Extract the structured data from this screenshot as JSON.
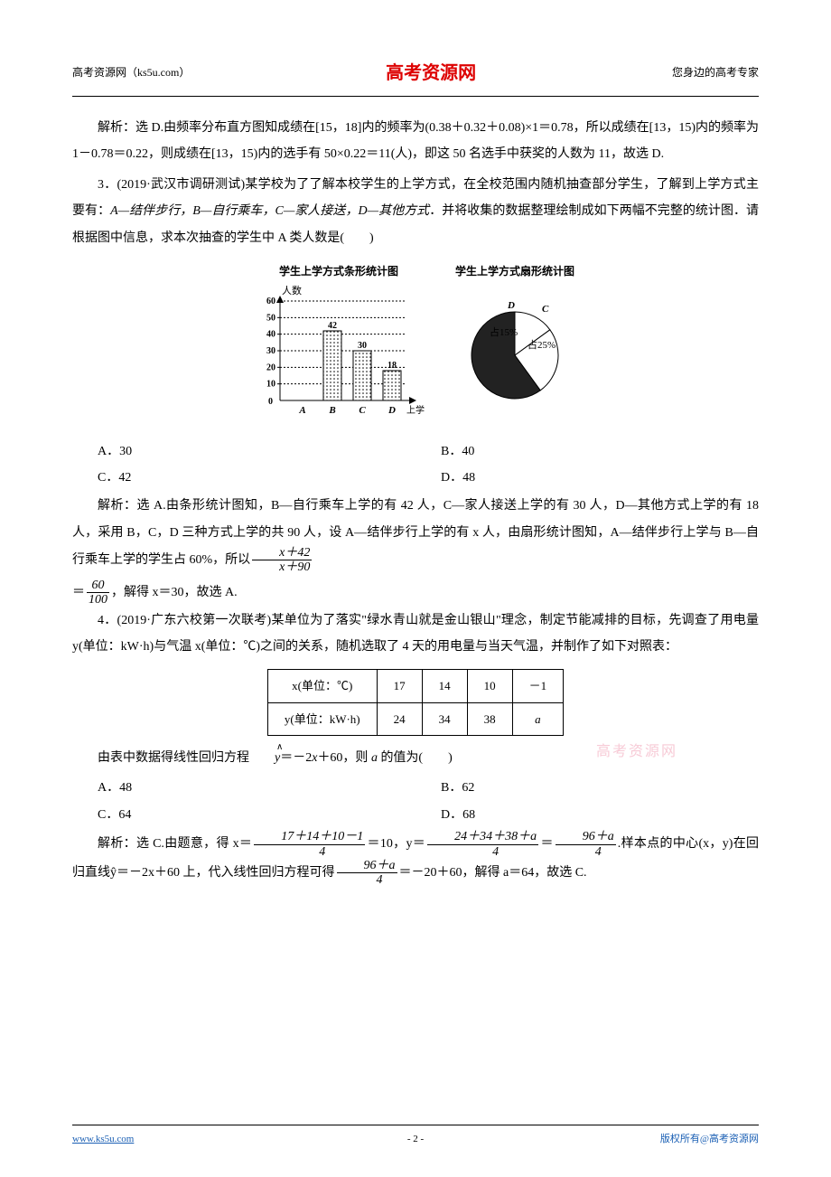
{
  "header": {
    "left": "高考资源网（ks5u.com）",
    "center": "高考资源网",
    "right": "您身边的高考专家"
  },
  "watermark": "高考资源网",
  "p1": "解析：选 D.由频率分布直方图知成绩在[15，18]内的频率为(0.38＋0.32＋0.08)×1＝0.78，所以成绩在[13，15)内的频率为 1－0.78＝0.22，则成绩在[13，15)内的选手有 50×0.22＝11(人)，即这 50 名选手中获奖的人数为 11，故选 D.",
  "q3_head": "3．(2019·武汉市调研测试)某学校为了了解本校学生的上学方式，在全校范围内随机抽查部分学生，了解到上学方式主要有：",
  "q3_modes": "A—结伴步行，B—自行乘车，C—家人接送，D—其他方式",
  "q3_tail": "．并将收集的数据整理绘制成如下两幅不完整的统计图．请根据图中信息，求本次抽查的学生中 A 类人数是(　　)",
  "bar_chart": {
    "title": "学生上学方式条形统计图",
    "ylabel": "人数",
    "xlabel": "上学方式",
    "categories": [
      "A",
      "B",
      "C",
      "D"
    ],
    "values": [
      null,
      42,
      30,
      18
    ],
    "yticks": [
      0,
      10,
      20,
      30,
      40,
      50,
      60
    ],
    "ylim": [
      0,
      60
    ],
    "bar_fill_hatch": true,
    "axis_color": "#000",
    "label_fontsize": 10
  },
  "pie_chart": {
    "title": "学生上学方式扇形统计图",
    "slices": [
      {
        "label": "D",
        "text": "占15%",
        "pct": 15,
        "color": "#fff",
        "label_pos": "top"
      },
      {
        "label": "C",
        "text": "占25%",
        "pct": 25,
        "color": "#fff",
        "label_pos": "right"
      },
      {
        "label": "AB",
        "text": "",
        "pct": 60,
        "color": "#222",
        "label_pos": "none"
      }
    ],
    "stroke": "#000"
  },
  "q3_opts": {
    "A": "A．30",
    "B": "B．40",
    "C": "C．42",
    "D": "D．48"
  },
  "q3_sol_1": "解析：选 A.由条形统计图知，B—自行乘车上学的有 42 人，C—家人接送上学的有 30 人，D—其他方式上学的有 18 人，采用 B，C，D 三种方式上学的共 90 人，设 A—结伴步行上学的有 x 人，由扇形统计图知，A—结伴步行上学与 B—自行乘车上学的学生占 60%，所以",
  "q3_frac1": {
    "num": "x＋42",
    "den": "x＋90"
  },
  "q3_eq": "＝",
  "q3_frac2": {
    "num": "60",
    "den": "100"
  },
  "q3_sol_2": "，解得 x＝30，故选 A.",
  "q4_head": "4．(2019·广东六校第一次联考)某单位为了落实\"绿水青山就是金山银山\"理念，制定节能减排的目标，先调查了用电量 y(单位：kW·h)与气温 x(单位：℃)之间的关系，随机选取了 4 天的用电量与当天气温，并制作了如下对照表：",
  "table": {
    "headers": [
      "x(单位：℃)",
      "17",
      "14",
      "10",
      "－1"
    ],
    "rows": [
      [
        "y(单位：kW·h)",
        "24",
        "34",
        "38",
        "a"
      ]
    ]
  },
  "q4_eq": "由表中数据得线性回归方程ŷ＝－2x＋60，则 a 的值为(　　)",
  "q4_opts": {
    "A": "A．48",
    "B": "B．62",
    "C": "C．64",
    "D": "D．68"
  },
  "q4_sol_1": "解析：选 C.由题意，得 x＝",
  "q4_frac1": {
    "num": "17＋14＋10－1",
    "den": "4"
  },
  "q4_mid1": "＝10，y＝",
  "q4_frac2": {
    "num": "24＋34＋38＋a",
    "den": "4"
  },
  "q4_mid2": "＝",
  "q4_frac3": {
    "num": "96＋a",
    "den": "4"
  },
  "q4_mid3": ".样本点的中心(x，y)在回归直线ŷ＝－2x＋60 上，代入线性回归方程可得",
  "q4_frac4": {
    "num": "96＋a",
    "den": "4"
  },
  "q4_mid4": "＝－20＋60，解得 a＝64，故选 C.",
  "footer": {
    "left": "www.ks5u.com",
    "center": "- 2 -",
    "right": "版权所有@高考资源网"
  }
}
